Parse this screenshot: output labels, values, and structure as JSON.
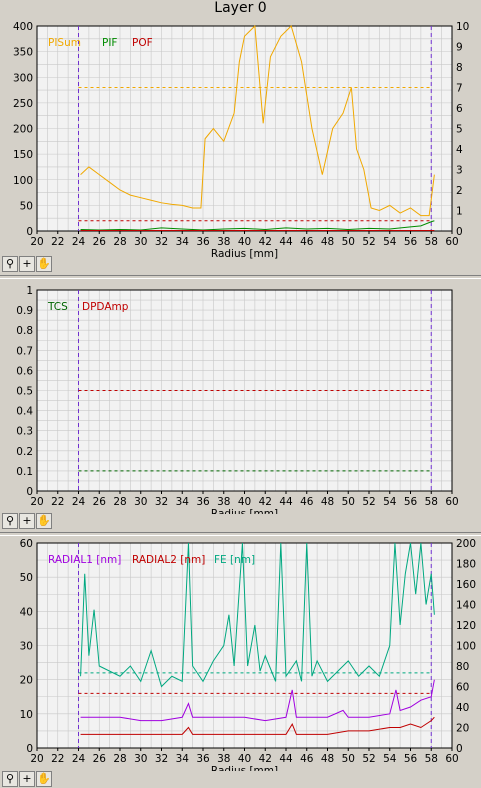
{
  "window_title": "Layer 0",
  "colors": {
    "pisum": "#f0a800",
    "pif": "#008c00",
    "pof": "#c00000",
    "tcs": "#006400",
    "dpdamp": "#c00000",
    "radial1": "#a000e0",
    "radial2": "#c00000",
    "fe": "#00a880",
    "limit": "#7030d0",
    "grid": "#c8c8c8",
    "plot_bg": "#f2f2f2"
  },
  "toolbar_icons": [
    "zoom-icon",
    "crosshair-icon",
    "pan-hand-icon"
  ],
  "chart_data": [
    {
      "type": "line",
      "xlabel": "Radius [mm]",
      "xlim": [
        20,
        60
      ],
      "ylim": [
        0,
        400
      ],
      "y2lim": [
        0,
        10
      ],
      "xticks": [
        "20",
        "22",
        "24",
        "26",
        "28",
        "30",
        "32",
        "34",
        "36",
        "38",
        "40",
        "42",
        "44",
        "46",
        "48",
        "50",
        "52",
        "54",
        "56",
        "58",
        "60"
      ],
      "yticks": [
        "0",
        "50",
        "100",
        "150",
        "200",
        "250",
        "300",
        "350",
        "400"
      ],
      "y2ticks": [
        "0",
        "1",
        "2",
        "3",
        "4",
        "5",
        "6",
        "7",
        "8",
        "9",
        "10"
      ],
      "vlines": [
        24,
        58
      ],
      "hlines": [
        {
          "series": "PISum",
          "y": 280
        },
        {
          "series": "POF",
          "y": 20
        }
      ],
      "series": [
        {
          "name": "PISum",
          "color_key": "pisum",
          "points": [
            [
              24.2,
              110
            ],
            [
              25,
              125
            ],
            [
              26,
              110
            ],
            [
              27,
              95
            ],
            [
              28,
              80
            ],
            [
              29,
              70
            ],
            [
              30,
              65
            ],
            [
              31,
              60
            ],
            [
              32,
              55
            ],
            [
              33,
              52
            ],
            [
              34,
              50
            ],
            [
              35,
              45
            ],
            [
              35.8,
              45
            ],
            [
              36.2,
              180
            ],
            [
              37,
              200
            ],
            [
              38,
              175
            ],
            [
              39,
              230
            ],
            [
              39.5,
              330
            ],
            [
              40,
              380
            ],
            [
              41,
              400
            ],
            [
              41.8,
              210
            ],
            [
              42.5,
              340
            ],
            [
              43.5,
              380
            ],
            [
              44.5,
              400
            ],
            [
              45.5,
              330
            ],
            [
              46.5,
              200
            ],
            [
              47.5,
              110
            ],
            [
              48.5,
              200
            ],
            [
              49.5,
              230
            ],
            [
              50.3,
              280
            ],
            [
              50.8,
              160
            ],
            [
              51.5,
              120
            ],
            [
              52.2,
              45
            ],
            [
              53,
              40
            ],
            [
              54,
              50
            ],
            [
              55,
              35
            ],
            [
              56,
              45
            ],
            [
              57,
              30
            ],
            [
              57.8,
              30
            ],
            [
              58.3,
              110
            ]
          ]
        },
        {
          "name": "PIF",
          "color_key": "pif",
          "points": [
            [
              24.2,
              3
            ],
            [
              26,
              2
            ],
            [
              28,
              3
            ],
            [
              30,
              2
            ],
            [
              32,
              6
            ],
            [
              34,
              4
            ],
            [
              36,
              2
            ],
            [
              38,
              4
            ],
            [
              40,
              5
            ],
            [
              42,
              3
            ],
            [
              44,
              6
            ],
            [
              46,
              4
            ],
            [
              48,
              5
            ],
            [
              50,
              3
            ],
            [
              52,
              5
            ],
            [
              54,
              4
            ],
            [
              56,
              8
            ],
            [
              57,
              10
            ],
            [
              58,
              18
            ],
            [
              58.3,
              20
            ]
          ]
        },
        {
          "name": "POF",
          "color_key": "pof",
          "points": [
            [
              24.2,
              1
            ],
            [
              30,
              1
            ],
            [
              36,
              1
            ],
            [
              42,
              1
            ],
            [
              48,
              1
            ],
            [
              54,
              1
            ],
            [
              58.3,
              1
            ]
          ]
        }
      ]
    },
    {
      "type": "line",
      "xlabel": "Radius [mm]",
      "xlim": [
        20,
        60
      ],
      "ylim": [
        0,
        1
      ],
      "xticks": [
        "20",
        "22",
        "24",
        "26",
        "28",
        "30",
        "32",
        "34",
        "36",
        "38",
        "40",
        "42",
        "44",
        "46",
        "48",
        "50",
        "52",
        "54",
        "56",
        "58",
        "60"
      ],
      "yticks": [
        "0",
        "0.1",
        "0.2",
        "0.3",
        "0.4",
        "0.5",
        "0.6",
        "0.7",
        "0.8",
        "0.9",
        "1"
      ],
      "vlines": [
        24,
        58
      ],
      "hlines": [
        {
          "series": "TCS",
          "y": 0.1
        },
        {
          "series": "DPDAmp",
          "y": 0.5
        }
      ],
      "series": [
        {
          "name": "TCS",
          "color_key": "tcs",
          "points": []
        },
        {
          "name": "DPDAmp",
          "color_key": "dpdamp",
          "points": []
        }
      ]
    },
    {
      "type": "line",
      "xlabel": "Radius [mm]",
      "xlim": [
        20,
        60
      ],
      "ylim": [
        0,
        60
      ],
      "y2lim": [
        0,
        200
      ],
      "xticks": [
        "20",
        "22",
        "24",
        "26",
        "28",
        "30",
        "32",
        "34",
        "36",
        "38",
        "40",
        "42",
        "44",
        "46",
        "48",
        "50",
        "52",
        "54",
        "56",
        "58",
        "60"
      ],
      "yticks": [
        "0",
        "10",
        "20",
        "30",
        "40",
        "50",
        "60"
      ],
      "y2ticks": [
        "0",
        "20",
        "40",
        "60",
        "80",
        "100",
        "120",
        "140",
        "160",
        "180",
        "200"
      ],
      "vlines": [
        24,
        58
      ],
      "hlines": [
        {
          "series": "FE [nm]",
          "y": 22
        },
        {
          "series": "RADIAL2 [nm]",
          "y": 16
        }
      ],
      "series": [
        {
          "name": "RADIAL1 [nm]",
          "color_key": "radial1",
          "points": [
            [
              24.2,
              9
            ],
            [
              26,
              9
            ],
            [
              28,
              9
            ],
            [
              30,
              8
            ],
            [
              32,
              8
            ],
            [
              34,
              9
            ],
            [
              34.6,
              13
            ],
            [
              35,
              9
            ],
            [
              38,
              9
            ],
            [
              40,
              9
            ],
            [
              42,
              8
            ],
            [
              44,
              9
            ],
            [
              44.6,
              17
            ],
            [
              45,
              9
            ],
            [
              48,
              9
            ],
            [
              49.5,
              11
            ],
            [
              50,
              9
            ],
            [
              52,
              9
            ],
            [
              54,
              10
            ],
            [
              54.6,
              17
            ],
            [
              55,
              11
            ],
            [
              56,
              12
            ],
            [
              57,
              14
            ],
            [
              58,
              15
            ],
            [
              58.3,
              20
            ]
          ]
        },
        {
          "name": "RADIAL2 [nm]",
          "color_key": "radial2",
          "points": [
            [
              24.2,
              4
            ],
            [
              26,
              4
            ],
            [
              28,
              4
            ],
            [
              30,
              4
            ],
            [
              32,
              4
            ],
            [
              34,
              4
            ],
            [
              34.6,
              6
            ],
            [
              35,
              4
            ],
            [
              38,
              4
            ],
            [
              40,
              4
            ],
            [
              42,
              4
            ],
            [
              44,
              4
            ],
            [
              44.6,
              7
            ],
            [
              45,
              4
            ],
            [
              48,
              4
            ],
            [
              50,
              5
            ],
            [
              52,
              5
            ],
            [
              54,
              6
            ],
            [
              55,
              6
            ],
            [
              56,
              7
            ],
            [
              57,
              6
            ],
            [
              58,
              8
            ],
            [
              58.3,
              9
            ]
          ]
        },
        {
          "name": "FE [nm]",
          "color_key": "fe",
          "points": [
            [
              24.2,
              70
            ],
            [
              24.6,
              170
            ],
            [
              25,
              90
            ],
            [
              25.5,
              135
            ],
            [
              26,
              80
            ],
            [
              27,
              75
            ],
            [
              28,
              70
            ],
            [
              29,
              80
            ],
            [
              30,
              65
            ],
            [
              31,
              95
            ],
            [
              32,
              60
            ],
            [
              33,
              70
            ],
            [
              34,
              65
            ],
            [
              34.6,
              200
            ],
            [
              35,
              80
            ],
            [
              36,
              65
            ],
            [
              37,
              85
            ],
            [
              38,
              100
            ],
            [
              38.5,
              130
            ],
            [
              39,
              80
            ],
            [
              39.8,
              200
            ],
            [
              40.3,
              80
            ],
            [
              41,
              120
            ],
            [
              41.5,
              75
            ],
            [
              42,
              90
            ],
            [
              43,
              65
            ],
            [
              43.5,
              200
            ],
            [
              44,
              70
            ],
            [
              45,
              85
            ],
            [
              45.5,
              65
            ],
            [
              46,
              200
            ],
            [
              46.5,
              70
            ],
            [
              47,
              85
            ],
            [
              48,
              65
            ],
            [
              49,
              75
            ],
            [
              50,
              85
            ],
            [
              51,
              70
            ],
            [
              52,
              80
            ],
            [
              53,
              70
            ],
            [
              54,
              100
            ],
            [
              54.5,
              200
            ],
            [
              55,
              120
            ],
            [
              55.5,
              170
            ],
            [
              56,
              200
            ],
            [
              56.5,
              150
            ],
            [
              57,
              200
            ],
            [
              57.5,
              140
            ],
            [
              58,
              170
            ],
            [
              58.3,
              130
            ]
          ]
        }
      ]
    }
  ]
}
